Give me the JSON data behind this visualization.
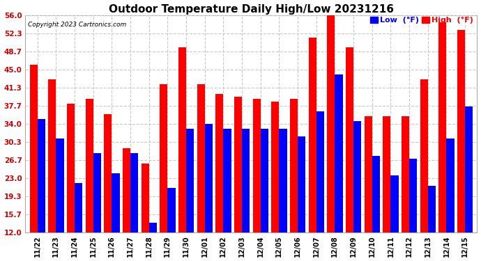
{
  "title": "Outdoor Temperature Daily High/Low 20231216",
  "copyright": "Copyright 2023 Cartronics.com",
  "dates": [
    "11/22",
    "11/23",
    "11/24",
    "11/25",
    "11/26",
    "11/27",
    "11/28",
    "11/29",
    "11/30",
    "12/01",
    "12/02",
    "12/03",
    "12/04",
    "12/05",
    "12/06",
    "12/07",
    "12/08",
    "12/09",
    "12/10",
    "12/11",
    "12/12",
    "12/13",
    "12/14",
    "12/15"
  ],
  "highs": [
    46.0,
    43.0,
    38.0,
    39.0,
    36.0,
    29.0,
    26.0,
    42.0,
    49.5,
    42.0,
    40.0,
    39.5,
    39.0,
    38.5,
    39.0,
    51.5,
    57.0,
    49.5,
    35.5,
    35.5,
    35.5,
    43.0,
    54.5,
    53.0
  ],
  "lows": [
    35.0,
    31.0,
    22.0,
    28.0,
    24.0,
    28.0,
    14.0,
    21.0,
    33.0,
    34.0,
    33.0,
    33.0,
    33.0,
    33.0,
    31.5,
    36.5,
    44.0,
    34.5,
    27.5,
    23.5,
    27.0,
    21.5,
    31.0,
    37.5
  ],
  "high_color": "#ff0000",
  "low_color": "#0000ff",
  "bg_color": "#ffffff",
  "grid_color": "#c8c8c8",
  "ymin": 12.0,
  "ymax": 56.0,
  "yticks": [
    12.0,
    15.7,
    19.3,
    23.0,
    26.7,
    30.3,
    34.0,
    37.7,
    41.3,
    45.0,
    48.7,
    52.3,
    56.0
  ],
  "ytick_labels": [
    "12.0",
    "15.7",
    "19.3",
    "23.0",
    "26.7",
    "30.3",
    "34.0",
    "37.7",
    "41.3",
    "45.0",
    "48.7",
    "52.3",
    "56.0"
  ],
  "title_fontsize": 11,
  "legend_low_label": "Low  (°F)",
  "legend_high_label": "High  (°F)"
}
